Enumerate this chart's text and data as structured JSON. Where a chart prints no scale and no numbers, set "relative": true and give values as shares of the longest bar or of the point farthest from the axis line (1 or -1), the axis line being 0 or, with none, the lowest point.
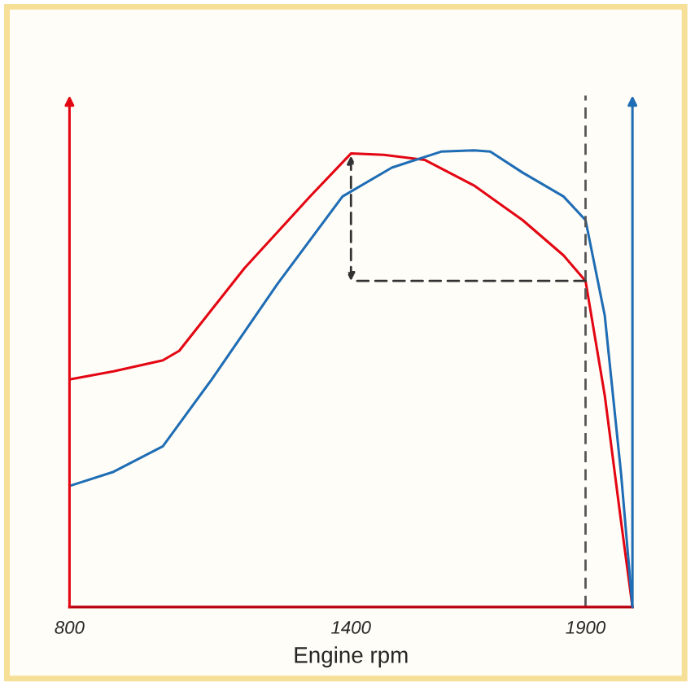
{
  "chart_data": {
    "type": "line",
    "relative": true,
    "xlabel": "Engine rpm",
    "xlim": [
      800,
      2000
    ],
    "xticks": [
      800,
      1400,
      1900
    ],
    "grid": false,
    "marker": "none",
    "line_style": "solid",
    "ref_lines": [
      {
        "axis": "x",
        "value": 1900,
        "color": "#555555",
        "line_style": "dashed"
      }
    ],
    "series": [
      {
        "color": "#e30613",
        "x": [
          800,
          894,
          999,
          1034,
          1173,
          1313,
          1400,
          1470,
          1557,
          1662,
          1766,
          1853,
          1900,
          1941,
          1976,
          2000
        ],
        "values": [
          0.498,
          0.516,
          0.54,
          0.561,
          0.742,
          0.899,
          0.993,
          0.99,
          0.979,
          0.923,
          0.847,
          0.77,
          0.714,
          0.463,
          0.185,
          0
        ]
      },
      {
        "color": "#1f6db5",
        "x": [
          800,
          894,
          999,
          1103,
          1243,
          1382,
          1487,
          1592,
          1662,
          1697,
          1766,
          1853,
          1900,
          1941,
          1976,
          2000
        ],
        "values": [
          0.265,
          0.296,
          0.352,
          0.498,
          0.707,
          0.899,
          0.962,
          0.997,
          1,
          0.997,
          0.951,
          0.899,
          0.847,
          0.638,
          0.289,
          0
        ]
      }
    ]
  }
}
